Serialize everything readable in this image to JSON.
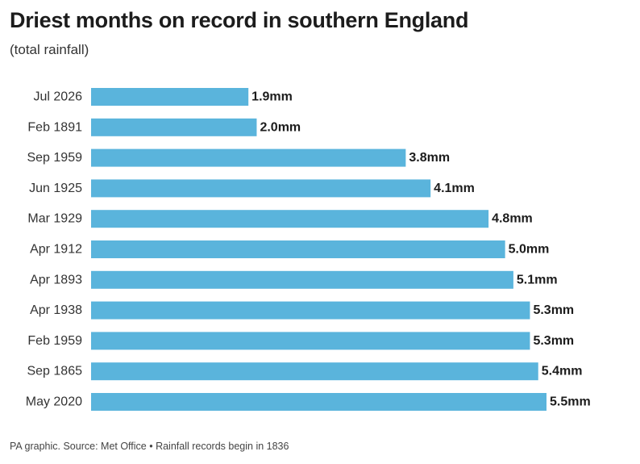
{
  "chart_data": {
    "type": "bar",
    "orientation": "horizontal",
    "title": "Driest months on record in southern England",
    "subtitle": "(total rainfall)",
    "categories": [
      "Jul 2026",
      "Feb 1891",
      "Sep 1959",
      "Jun 1925",
      "Mar 1929",
      "Apr 1912",
      "Apr 1893",
      "Apr 1938",
      "Feb 1959",
      "Sep 1865",
      "May 2020"
    ],
    "values": [
      1.9,
      2.0,
      3.8,
      4.1,
      4.8,
      5.0,
      5.1,
      5.3,
      5.3,
      5.4,
      5.5
    ],
    "value_labels": [
      "1.9mm",
      "2.0mm",
      "3.8mm",
      "4.1mm",
      "4.8mm",
      "5.0mm",
      "5.1mm",
      "5.3mm",
      "5.3mm",
      "5.4mm",
      "5.5mm"
    ],
    "unit": "mm",
    "xlim": [
      0,
      5.5
    ],
    "grid": false,
    "bar_color": "#5ab4dc"
  },
  "footer": "PA graphic. Source: Met Office • Rainfall records begin in 1836"
}
